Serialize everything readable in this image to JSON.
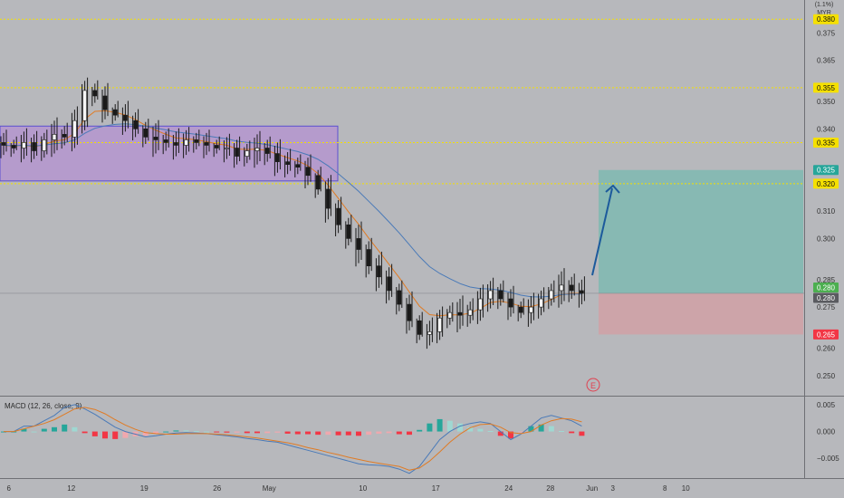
{
  "price_chart": {
    "type": "candlestick",
    "currency": "MYR",
    "top_right_label": "(1.1%)",
    "ylim": [
      0.243,
      0.387
    ],
    "y_ticks": [
      0.25,
      0.26,
      0.275,
      0.285,
      0.3,
      0.31,
      0.34,
      0.35,
      0.365,
      0.375
    ],
    "x_ticks": [
      {
        "label": "6",
        "day": 6
      },
      {
        "label": "12",
        "day": 12
      },
      {
        "label": "19",
        "day": 19
      },
      {
        "label": "26",
        "day": 26
      },
      {
        "label": "May",
        "day": 31
      },
      {
        "label": "10",
        "day": 40
      },
      {
        "label": "17",
        "day": 47
      },
      {
        "label": "24",
        "day": 54
      },
      {
        "label": "28",
        "day": 58
      },
      {
        "label": "Jun",
        "day": 62
      },
      {
        "label": "3",
        "day": 64
      },
      {
        "label": "8",
        "day": 69
      },
      {
        "label": "10",
        "day": 71
      }
    ],
    "horizontal_levels": [
      {
        "value": 0.38,
        "label": "0.380",
        "color": "#f5e000"
      },
      {
        "value": 0.355,
        "label": "0.355",
        "color": "#f5e000"
      },
      {
        "value": 0.335,
        "label": "0.335",
        "color": "#f5e000"
      },
      {
        "value": 0.32,
        "label": "0.320",
        "color": "#f5e000"
      }
    ],
    "last_price": {
      "value": 0.28,
      "label": "0.280"
    },
    "position": {
      "target": {
        "value": 0.325,
        "label": "0.325",
        "color": "#26a69a"
      },
      "entry": {
        "value": 0.28,
        "label": "0.280",
        "color": "#4caf50"
      },
      "stop": {
        "value": 0.265,
        "label": "0.265",
        "color": "#f23645"
      }
    },
    "supply_zone": {
      "low": 0.321,
      "high": 0.341
    },
    "earnings_marker": "E",
    "candles_close": [
      0.334,
      0.333,
      0.335,
      0.332,
      0.336,
      0.338,
      0.337,
      0.343,
      0.354,
      0.352,
      0.347,
      0.345,
      0.343,
      0.34,
      0.337,
      0.336,
      0.335,
      0.334,
      0.336,
      0.335,
      0.334,
      0.333,
      0.333,
      0.33,
      0.332,
      0.333,
      0.331,
      0.328,
      0.327,
      0.326,
      0.323,
      0.318,
      0.311,
      0.305,
      0.3,
      0.296,
      0.29,
      0.286,
      0.281,
      0.276,
      0.27,
      0.265,
      0.266,
      0.271,
      0.273,
      0.272,
      0.274,
      0.278,
      0.281,
      0.278,
      0.275,
      0.273,
      0.275,
      0.278,
      0.281,
      0.283,
      0.281,
      0.28
    ]
  },
  "macd": {
    "label": "MACD (12, 26, close, 9)",
    "ylim": [
      -0.0085,
      0.0065
    ],
    "y_ticks": [
      {
        "value": 0.005,
        "label": "0.005"
      },
      {
        "value": 0.0,
        "label": "0.000"
      },
      {
        "value": -0.005,
        "label": "−0.005"
      }
    ],
    "macd_line": [
      0.0,
      0.0,
      0.001,
      0.001,
      0.002,
      0.003,
      0.0045,
      0.005,
      0.0042,
      0.0032,
      0.002,
      0.0008,
      0.0,
      -0.0005,
      -0.001,
      -0.0008,
      -0.0005,
      -0.0003,
      -0.0002,
      -0.0003,
      -0.0004,
      -0.0006,
      -0.0008,
      -0.001,
      -0.0013,
      -0.0015,
      -0.0018,
      -0.002,
      -0.0025,
      -0.003,
      -0.0035,
      -0.004,
      -0.0045,
      -0.005,
      -0.0055,
      -0.006,
      -0.0062,
      -0.0063,
      -0.0065,
      -0.007,
      -0.0078,
      -0.0065,
      -0.004,
      -0.0015,
      0.0,
      0.001,
      0.0015,
      0.0018,
      0.0015,
      0.0,
      -0.0015,
      -0.0005,
      0.001,
      0.0025,
      0.003,
      0.0025,
      0.002,
      0.001
    ],
    "signal_line": [
      0.0,
      0.0,
      0.0005,
      0.001,
      0.0015,
      0.0022,
      0.0032,
      0.0042,
      0.0045,
      0.0041,
      0.0033,
      0.0022,
      0.0012,
      0.0004,
      -0.0002,
      -0.0004,
      -0.0005,
      -0.0005,
      -0.0004,
      -0.0004,
      -0.0004,
      -0.0005,
      -0.0006,
      -0.0008,
      -0.001,
      -0.0012,
      -0.0015,
      -0.0018,
      -0.0021,
      -0.0025,
      -0.003,
      -0.0034,
      -0.0039,
      -0.0043,
      -0.0048,
      -0.0052,
      -0.0056,
      -0.0059,
      -0.0062,
      -0.0065,
      -0.0072,
      -0.0068,
      -0.0055,
      -0.0038,
      -0.002,
      -0.0005,
      0.0007,
      0.0013,
      0.0014,
      0.0008,
      -0.0002,
      -0.0004,
      0.0,
      0.0012,
      0.002,
      0.0024,
      0.0023,
      0.0018
    ]
  },
  "colors": {
    "background": "#b7b8bc",
    "candle": "#1a1a1a",
    "ema_fast": "#e07b24",
    "ema_slow": "#4a7ab8",
    "zone_fill": "#b48cd4",
    "zone_border": "#5b4fd0",
    "target_zone": "#7fb8b2",
    "stop_zone": "#cfa2a6",
    "arrow": "#1c5a9c",
    "macd_up": "#26a69a",
    "macd_down": "#f23645",
    "hist_up_light": "#9fd8d2",
    "hist_down_light": "#f0a8ae"
  }
}
